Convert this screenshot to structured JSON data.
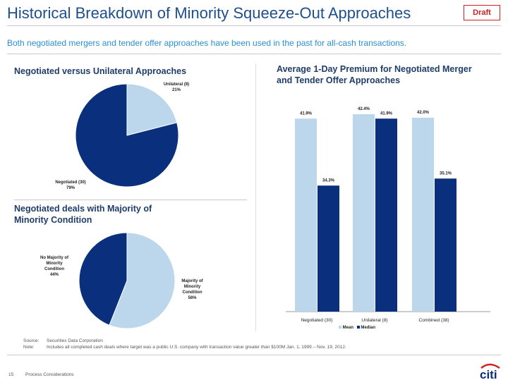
{
  "header": {
    "title": "Historical Breakdown of Minority Squeeze-Out Approaches",
    "badge": "Draft",
    "subtitle": "Both negotiated mergers and tender offer approaches have been used in the past for all-cash transactions."
  },
  "colors": {
    "light": "#bcd6ec",
    "dark": "#0a2f7d",
    "title": "#1f4e8c",
    "accent": "#2a8fd6",
    "draft": "#d02020"
  },
  "chart_data": [
    {
      "type": "pie",
      "title": "Negotiated versus Unilateral Approaches",
      "slices": [
        {
          "label": "Unilateral (8)",
          "pct_label": "21%",
          "value": 21,
          "color": "#bcd6ec"
        },
        {
          "label": "Negotiated (30)",
          "pct_label": "79%",
          "value": 79,
          "color": "#0a2f7d"
        }
      ]
    },
    {
      "type": "pie",
      "title": "Negotiated deals with Majority of Minority Condition",
      "slices": [
        {
          "label": "Majority of Minority Condition",
          "pct_label": "56%",
          "value": 56,
          "color": "#bcd6ec"
        },
        {
          "label": "No Majority of Minority Condition",
          "pct_label": "44%",
          "value": 44,
          "color": "#0a2f7d"
        }
      ]
    },
    {
      "type": "bar",
      "title": "Average 1-Day Premium for Negotiated Merger and Tender Offer Approaches",
      "categories": [
        "Negotiated (30)",
        "Unilateral (8)",
        "Combined (38)"
      ],
      "series": [
        {
          "name": "Mean",
          "values": [
            41.9,
            42.4,
            42.0
          ],
          "labels": [
            "41.9%",
            "42.4%",
            "42.0%"
          ],
          "color": "#bcd6ec"
        },
        {
          "name": "Median",
          "values": [
            34.3,
            41.9,
            35.1
          ],
          "labels": [
            "34.3%",
            "41.9%",
            "35.1%"
          ],
          "color": "#0a2f7d"
        }
      ],
      "ylim": [
        20,
        45
      ],
      "legend": "bottom",
      "grid": false
    }
  ],
  "footer": {
    "source_label": "Source:",
    "source": "Securities Data Corporation",
    "note_label": "Note:",
    "note": "Includes all completed cash deals where target was a public U.S. company with transaction value greater than $100M Jan. 1, 1999 – Nov. 19, 2012.",
    "page": "15",
    "section": "Process Considerations",
    "logo": "citi"
  }
}
